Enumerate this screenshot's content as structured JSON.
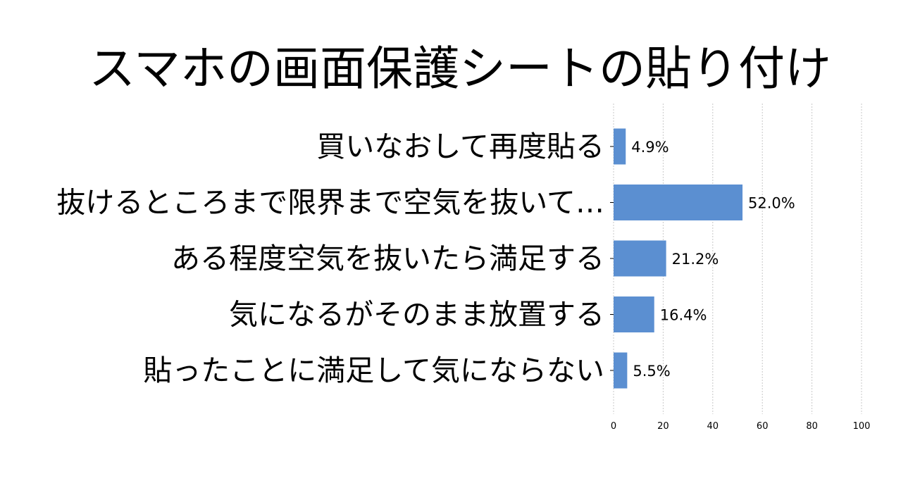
{
  "chart_data": {
    "type": "bar",
    "orientation": "horizontal",
    "title": "スマホの画面保護シートの貼り付け",
    "categories": [
      "買いなおして再度貼る",
      "抜けるところまで限界まで空気を抜いて…",
      "ある程度空気を抜いたら満足する",
      "気になるがそのまま放置する",
      "貼ったことに満足して気にならない"
    ],
    "values": [
      4.9,
      52.0,
      21.2,
      16.4,
      5.5
    ],
    "value_labels": [
      "4.9%",
      "52.0%",
      "21.2%",
      "16.4%",
      "5.5%"
    ],
    "xlim": [
      0,
      100
    ],
    "xticks": [
      0,
      20,
      40,
      60,
      80,
      100
    ],
    "xtick_labels": [
      "0",
      "20",
      "40",
      "60",
      "80",
      "100"
    ],
    "xlabel": "",
    "ylabel": "",
    "grid": "vertical, dashed",
    "bar_color": "#5b8fd1",
    "grid_color": "#c8c8c8"
  }
}
